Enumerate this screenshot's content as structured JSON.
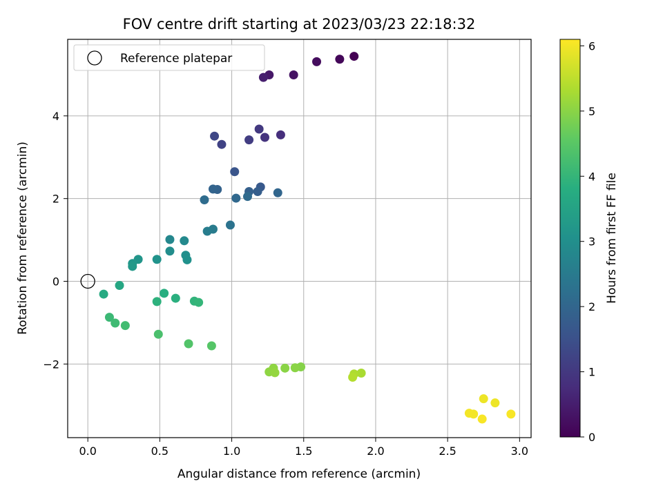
{
  "chart_data": {
    "type": "scatter",
    "title": "FOV centre drift starting at 2023/03/23 22:18:32",
    "xlabel": "Angular distance from reference (arcmin)",
    "ylabel": "Rotation from reference (arcmin)",
    "xlim": [
      -0.14,
      3.08
    ],
    "ylim": [
      -3.78,
      5.85
    ],
    "xticks": [
      0.0,
      0.5,
      1.0,
      1.5,
      2.0,
      2.5,
      3.0
    ],
    "xtick_labels": [
      "0.0",
      "0.5",
      "1.0",
      "1.5",
      "2.0",
      "2.5",
      "3.0"
    ],
    "yticks": [
      -2,
      0,
      2,
      4
    ],
    "ytick_labels": [
      "−2",
      "0",
      "2",
      "4"
    ],
    "grid": true,
    "legend": {
      "position": "top-left",
      "label": "Reference platepar"
    },
    "reference_point": {
      "x": 0.0,
      "y": 0.0
    },
    "colorbar": {
      "label": "Hours from first FF file",
      "range": [
        0,
        6.1
      ],
      "ticks": [
        0,
        1,
        2,
        3,
        4,
        5,
        6
      ],
      "tick_labels": [
        "0",
        "1",
        "2",
        "3",
        "4",
        "5",
        "6"
      ],
      "colormap": "viridis"
    },
    "points": [
      {
        "x": 1.85,
        "y": 5.44,
        "c": 0.0
      },
      {
        "x": 1.75,
        "y": 5.37,
        "c": 0.1
      },
      {
        "x": 1.59,
        "y": 5.31,
        "c": 0.2
      },
      {
        "x": 1.43,
        "y": 4.99,
        "c": 0.3
      },
      {
        "x": 1.26,
        "y": 4.99,
        "c": 0.4
      },
      {
        "x": 1.22,
        "y": 4.93,
        "c": 0.5
      },
      {
        "x": 1.34,
        "y": 3.54,
        "c": 0.8
      },
      {
        "x": 1.23,
        "y": 3.48,
        "c": 0.9
      },
      {
        "x": 1.19,
        "y": 3.68,
        "c": 1.0
      },
      {
        "x": 1.12,
        "y": 3.42,
        "c": 1.1
      },
      {
        "x": 0.93,
        "y": 3.31,
        "c": 1.2
      },
      {
        "x": 0.88,
        "y": 3.51,
        "c": 1.3
      },
      {
        "x": 1.02,
        "y": 2.65,
        "c": 1.6
      },
      {
        "x": 1.2,
        "y": 2.28,
        "c": 1.7
      },
      {
        "x": 1.18,
        "y": 2.17,
        "c": 1.8
      },
      {
        "x": 1.12,
        "y": 2.17,
        "c": 1.85
      },
      {
        "x": 0.9,
        "y": 2.22,
        "c": 1.9
      },
      {
        "x": 0.87,
        "y": 2.23,
        "c": 1.95
      },
      {
        "x": 1.32,
        "y": 2.14,
        "c": 2.0
      },
      {
        "x": 1.03,
        "y": 2.01,
        "c": 2.05
      },
      {
        "x": 1.11,
        "y": 2.05,
        "c": 2.1
      },
      {
        "x": 0.81,
        "y": 1.97,
        "c": 2.15
      },
      {
        "x": 0.99,
        "y": 1.36,
        "c": 2.3
      },
      {
        "x": 0.87,
        "y": 1.26,
        "c": 2.5
      },
      {
        "x": 0.83,
        "y": 1.21,
        "c": 2.55
      },
      {
        "x": 0.57,
        "y": 1.01,
        "c": 2.8
      },
      {
        "x": 0.67,
        "y": 0.98,
        "c": 2.85
      },
      {
        "x": 0.57,
        "y": 0.73,
        "c": 2.95
      },
      {
        "x": 0.68,
        "y": 0.63,
        "c": 3.0
      },
      {
        "x": 0.69,
        "y": 0.52,
        "c": 3.05
      },
      {
        "x": 0.48,
        "y": 0.53,
        "c": 3.1
      },
      {
        "x": 0.35,
        "y": 0.53,
        "c": 3.15
      },
      {
        "x": 0.31,
        "y": 0.43,
        "c": 3.2
      },
      {
        "x": 0.31,
        "y": 0.36,
        "c": 3.25
      },
      {
        "x": 0.22,
        "y": -0.1,
        "c": 3.6
      },
      {
        "x": 0.11,
        "y": -0.31,
        "c": 3.7
      },
      {
        "x": 0.53,
        "y": -0.29,
        "c": 3.8
      },
      {
        "x": 0.61,
        "y": -0.41,
        "c": 3.85
      },
      {
        "x": 0.48,
        "y": -0.49,
        "c": 3.9
      },
      {
        "x": 0.74,
        "y": -0.48,
        "c": 3.95
      },
      {
        "x": 0.77,
        "y": -0.51,
        "c": 4.0
      },
      {
        "x": 0.15,
        "y": -0.87,
        "c": 4.1
      },
      {
        "x": 0.19,
        "y": -1.01,
        "c": 4.15
      },
      {
        "x": 0.26,
        "y": -1.07,
        "c": 4.2
      },
      {
        "x": 0.49,
        "y": -1.28,
        "c": 4.3
      },
      {
        "x": 0.7,
        "y": -1.51,
        "c": 4.4
      },
      {
        "x": 0.86,
        "y": -1.56,
        "c": 4.45
      },
      {
        "x": 1.48,
        "y": -2.07,
        "c": 4.95
      },
      {
        "x": 1.44,
        "y": -2.09,
        "c": 5.0
      },
      {
        "x": 1.37,
        "y": -2.1,
        "c": 5.0
      },
      {
        "x": 1.29,
        "y": -2.1,
        "c": 5.05
      },
      {
        "x": 1.26,
        "y": -2.19,
        "c": 5.05
      },
      {
        "x": 1.3,
        "y": -2.21,
        "c": 5.1
      },
      {
        "x": 1.9,
        "y": -2.22,
        "c": 5.3
      },
      {
        "x": 1.85,
        "y": -2.24,
        "c": 5.35
      },
      {
        "x": 1.84,
        "y": -2.32,
        "c": 5.4
      },
      {
        "x": 2.75,
        "y": -2.84,
        "c": 5.95
      },
      {
        "x": 2.83,
        "y": -2.94,
        "c": 5.95
      },
      {
        "x": 2.65,
        "y": -3.19,
        "c": 6.0
      },
      {
        "x": 2.68,
        "y": -3.21,
        "c": 6.0
      },
      {
        "x": 2.94,
        "y": -3.21,
        "c": 6.05
      },
      {
        "x": 2.74,
        "y": -3.33,
        "c": 6.05
      }
    ]
  }
}
